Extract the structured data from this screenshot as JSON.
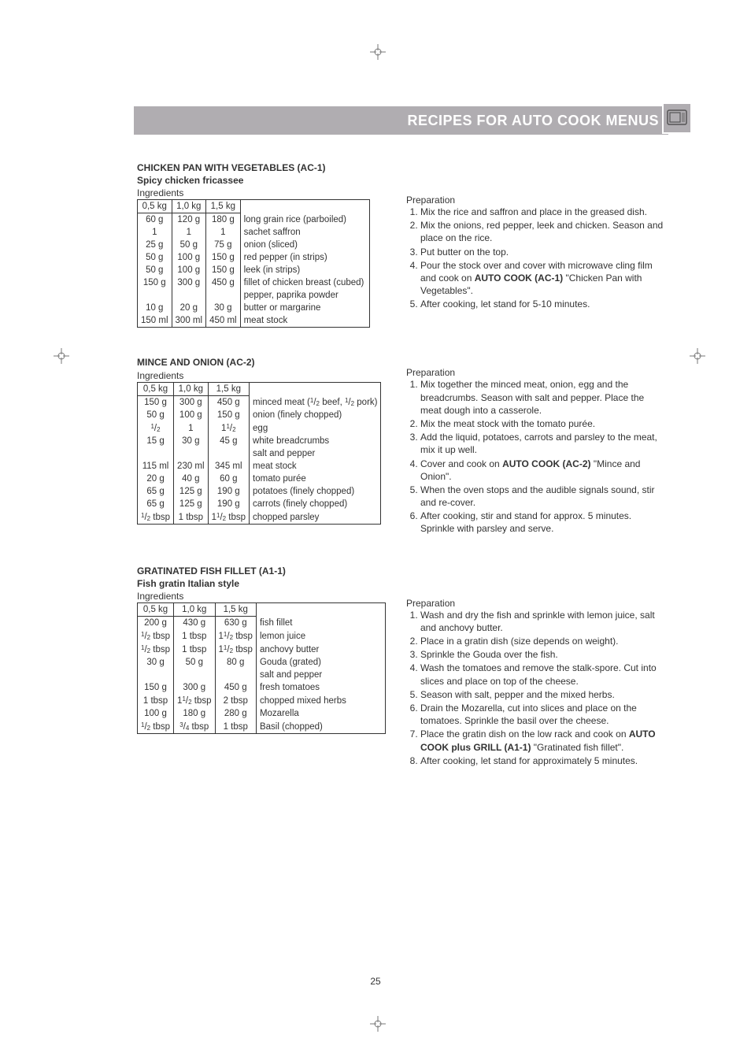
{
  "header": {
    "title": "RECIPES FOR AUTO COOK MENUS",
    "band_color": "#b0adb1",
    "title_color": "#ffffff",
    "icon_alt": "microwave-icon"
  },
  "page_number": "25",
  "recipe1": {
    "title": "CHICKEN PAN WITH VEGETABLES (AC-1)",
    "subtitle": "Spicy chicken fricassee",
    "ingredients_label": "Ingredients",
    "cols": [
      "0,5 kg",
      "1,0 kg",
      "1,5 kg"
    ],
    "rows": [
      [
        "60 g",
        "120 g",
        "180 g",
        "long grain rice (parboiled)"
      ],
      [
        "1",
        "1",
        "1",
        "sachet saffron"
      ],
      [
        "25 g",
        "50 g",
        "75 g",
        "onion (sliced)"
      ],
      [
        "50 g",
        "100 g",
        "150 g",
        "red pepper (in strips)"
      ],
      [
        "50 g",
        "100 g",
        "150 g",
        "leek (in strips)"
      ],
      [
        "150 g",
        "300 g",
        "450 g",
        "fillet of chicken breast (cubed)"
      ],
      [
        "",
        "",
        "",
        "pepper, paprika powder"
      ],
      [
        "10 g",
        "20 g",
        "30 g",
        "butter or margarine"
      ],
      [
        "150 ml",
        "300 ml",
        "450 ml",
        "meat stock"
      ]
    ],
    "prep_label": "Preparation",
    "prep": [
      "Mix the rice and saffron and place in the greased dish.",
      "Mix the onions, red pepper, leek and chicken. Season and place on the rice.",
      "Put butter on the top.",
      "Pour the stock over and cover with microwave cling film and cook on <b>AUTO COOK (AC-1)</b> \"Chicken Pan with Vegetables\".",
      "After cooking, let stand for 5-10 minutes."
    ]
  },
  "recipe2": {
    "title": "MINCE AND ONION (AC-2)",
    "ingredients_label": "Ingredients",
    "cols": [
      "0,5 kg",
      "1,0 kg",
      "1,5 kg"
    ],
    "rows": [
      [
        "150 g",
        "300 g",
        "450 g",
        "minced meat (<span class='frac'><sup>1</sup>/<sub>2</sub></span> beef, <span class='frac'><sup>1</sup>/<sub>2</sub></span> pork)"
      ],
      [
        "50 g",
        "100 g",
        "150 g",
        "onion (finely chopped)"
      ],
      [
        "<span class='frac'><sup>1</sup>/<sub>2</sub></span>",
        "1",
        "1<span class='frac'><sup>1</sup>/<sub>2</sub></span>",
        "egg"
      ],
      [
        "15 g",
        "30 g",
        "45 g",
        "white breadcrumbs"
      ],
      [
        "",
        "",
        "",
        "salt and pepper"
      ],
      [
        "115 ml",
        "230 ml",
        "345 ml",
        "meat stock"
      ],
      [
        "20 g",
        "40 g",
        "60 g",
        "tomato purée"
      ],
      [
        "65 g",
        "125 g",
        "190 g",
        "potatoes (finely chopped)"
      ],
      [
        "65 g",
        "125 g",
        "190 g",
        "carrots (finely chopped)"
      ],
      [
        "<span class='frac'><sup>1</sup>/<sub>2</sub></span> tbsp",
        "1 tbsp",
        "1<span class='frac'><sup>1</sup>/<sub>2</sub></span> tbsp",
        "chopped parsley"
      ]
    ],
    "prep_label": "Preparation",
    "prep": [
      "Mix together the minced meat, onion, egg and the breadcrumbs. Season with salt and pepper. Place the meat dough into a casserole.",
      "Mix the meat stock with the tomato purée.",
      "Add the liquid, potatoes, carrots and parsley to the meat, mix it up well.",
      "Cover and cook on <b>AUTO COOK (AC-2)</b> \"Mince and Onion\".",
      "When the oven stops and the audible signals sound, stir and re-cover.",
      "After cooking, stir and stand for approx. 5 minutes. Sprinkle with parsley and serve."
    ]
  },
  "recipe3": {
    "title": "GRATINATED FISH FILLET (A1-1)",
    "subtitle": "Fish gratin Italian style",
    "ingredients_label": "Ingredients",
    "cols": [
      "0,5 kg",
      "1,0 kg",
      "1,5 kg"
    ],
    "rows": [
      [
        "200 g",
        "430 g",
        "630 g",
        "fish fillet"
      ],
      [
        "<span class='frac'><sup>1</sup>/<sub>2</sub></span> tbsp",
        "1 tbsp",
        "1<span class='frac'><sup>1</sup>/<sub>2</sub></span> tbsp",
        "lemon juice"
      ],
      [
        "<span class='frac'><sup>1</sup>/<sub>2</sub></span> tbsp",
        "1 tbsp",
        "1<span class='frac'><sup>1</sup>/<sub>2</sub></span> tbsp",
        "anchovy butter"
      ],
      [
        "30 g",
        "50 g",
        "80 g",
        "Gouda (grated)"
      ],
      [
        "",
        "",
        "",
        "salt and pepper"
      ],
      [
        "150 g",
        "300 g",
        "450 g",
        "fresh tomatoes"
      ],
      [
        "1 tbsp",
        "1<span class='frac'><sup>1</sup>/<sub>2</sub></span> tbsp",
        "2 tbsp",
        "chopped mixed herbs"
      ],
      [
        "100 g",
        "180 g",
        "280 g",
        "Mozarella"
      ],
      [
        "<span class='frac'><sup>1</sup>/<sub>2</sub></span> tbsp",
        "<span class='frac'><sup>3</sup>/<sub>4</sub></span> tbsp",
        "1 tbsp",
        "Basil (chopped)"
      ]
    ],
    "prep_label": "Preparation",
    "prep": [
      "Wash and dry the fish and sprinkle with lemon juice, salt and anchovy butter.",
      "Place in a gratin dish (size depends on weight).",
      "Sprinkle the Gouda over the fish.",
      "Wash the tomatoes and remove the stalk-spore. Cut into slices and place on top of the cheese.",
      "Season with salt, pepper and the mixed herbs.",
      "Drain the Mozarella, cut into slices and place on the tomatoes. Sprinkle the basil over the cheese.",
      "Place the gratin dish on the low rack and cook on <b>AUTO COOK plus GRILL (A1-1)</b> \"Gratinated fish fillet\".",
      "After cooking, let stand for approximately 5 minutes."
    ]
  }
}
